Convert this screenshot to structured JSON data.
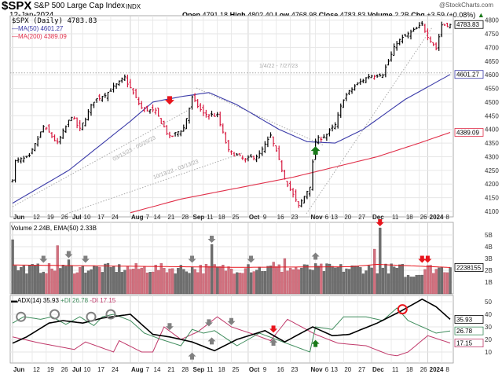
{
  "header": {
    "symbol": "$SPX",
    "name": "S&P 500 Large Cap Index",
    "exchange": "INDX",
    "date": "12-Jan-2024",
    "credit": "@StockCharts.com",
    "open_label": "Open",
    "open": "4791.18",
    "high_label": "High",
    "high": "4802.40",
    "low_label": "Low",
    "low": "4768.98",
    "close_label": "Close",
    "close": "4783.83",
    "volume_label": "Volume",
    "volume": "2.2B",
    "chg_label": "Chg",
    "chg": "+3.59 (+0.08%)"
  },
  "colors": {
    "up": "#000000",
    "down": "#d6193f",
    "ma50": "#3a3aa8",
    "ma200": "#e0304a",
    "plus_di": "#3e8c5c",
    "minus_di": "#c0396a",
    "adx": "#000000",
    "vol_up": "#6e6e6e",
    "vol_down": "#d1707e"
  },
  "chart_data": [
    {
      "type": "ohlc",
      "title": "$SPX (Daily) 4783.83",
      "legend": [
        "$SPX (Daily) 4783.83",
        "MA(50) 4601.27",
        "MA(200) 4389.09"
      ],
      "ylim": [
        4080,
        4820
      ],
      "yticks": [
        4100,
        4150,
        4200,
        4250,
        4300,
        4350,
        4400,
        4450,
        4500,
        4550,
        4600,
        4650,
        4700,
        4750,
        4800
      ],
      "last_labels": {
        "price": "4783.83",
        "ma50": "4601.27",
        "ma200": "4389.09"
      },
      "close_keypoints": [
        [
          0,
          4221
        ],
        [
          1,
          4282
        ],
        [
          6,
          4299
        ],
        [
          11,
          4410
        ],
        [
          13,
          4388
        ],
        [
          16,
          4348
        ],
        [
          21,
          4450
        ],
        [
          24,
          4399
        ],
        [
          29,
          4505
        ],
        [
          34,
          4536
        ],
        [
          40,
          4589
        ],
        [
          44,
          4513
        ],
        [
          46,
          4478
        ],
        [
          51,
          4464
        ],
        [
          56,
          4370
        ],
        [
          61,
          4405
        ],
        [
          64,
          4515
        ],
        [
          68,
          4457
        ],
        [
          73,
          4450
        ],
        [
          77,
          4320
        ],
        [
          83,
          4288
        ],
        [
          88,
          4308
        ],
        [
          92,
          4376
        ],
        [
          97,
          4224
        ],
        [
          102,
          4117
        ],
        [
          106,
          4194
        ],
        [
          108,
          4358
        ],
        [
          112,
          4382
        ],
        [
          115,
          4415
        ],
        [
          118,
          4514
        ],
        [
          122,
          4559
        ],
        [
          127,
          4595
        ],
        [
          132,
          4604
        ],
        [
          137,
          4719
        ],
        [
          142,
          4754
        ],
        [
          146,
          4783
        ],
        [
          148,
          4743
        ],
        [
          151,
          4697
        ],
        [
          153,
          4783
        ],
        [
          156,
          4784
        ]
      ],
      "ma50_keypoints": [
        [
          0,
          4130
        ],
        [
          20,
          4250
        ],
        [
          42,
          4430
        ],
        [
          50,
          4500
        ],
        [
          60,
          4520
        ],
        [
          70,
          4535
        ],
        [
          80,
          4490
        ],
        [
          95,
          4400
        ],
        [
          105,
          4355
        ],
        [
          115,
          4350
        ],
        [
          125,
          4400
        ],
        [
          140,
          4510
        ],
        [
          156,
          4601
        ]
      ],
      "ma200_keypoints": [
        [
          42,
          4095
        ],
        [
          60,
          4145
        ],
        [
          80,
          4185
        ],
        [
          100,
          4225
        ],
        [
          110,
          4250
        ],
        [
          130,
          4300
        ],
        [
          145,
          4350
        ],
        [
          156,
          4389
        ]
      ],
      "trendline_labels": [
        "1/4/22 - 7/27/23",
        "03/13/23 - 05/25/23",
        "10/13/22 - 03/13/23"
      ],
      "signals": [
        [
          56,
          "down",
          "#e8141c"
        ],
        [
          108,
          "up",
          "#1a7a1a"
        ]
      ]
    },
    {
      "type": "bar",
      "title": "Volume 2.24B, EMA(50) 2.33B",
      "ylim": [
        0,
        6
      ],
      "yticks": [
        "1B",
        "2B",
        "3B",
        "4B",
        "5B"
      ],
      "last_label": "2238155",
      "spikes": [
        [
          0,
          4.6
        ],
        [
          16,
          4.1
        ],
        [
          20,
          2.9
        ],
        [
          71,
          4.2
        ],
        [
          131,
          5.6
        ],
        [
          129,
          3.8
        ],
        [
          97,
          3.0
        ],
        [
          93,
          2.7
        ],
        [
          84,
          2.5
        ]
      ],
      "ema_keypoints": [
        [
          0,
          2.45
        ],
        [
          40,
          2.35
        ],
        [
          80,
          2.25
        ],
        [
          120,
          2.3
        ],
        [
          130,
          2.5
        ],
        [
          145,
          2.35
        ],
        [
          156,
          2.24
        ]
      ],
      "arrows": [
        [
          11,
          "down",
          "#808080"
        ],
        [
          20,
          "down",
          "#808080"
        ],
        [
          26,
          "down",
          "#808080"
        ],
        [
          64,
          "down",
          "#808080"
        ],
        [
          71,
          "down",
          "#808080"
        ],
        [
          85,
          "down",
          "#808080"
        ],
        [
          108,
          "up",
          "#808080"
        ],
        [
          131,
          "down",
          "#e8141c"
        ],
        [
          146,
          "down",
          "#e8141c"
        ],
        [
          148,
          "down",
          "#e8141c"
        ]
      ]
    },
    {
      "type": "line",
      "title": "ADX(14) 35.93",
      "legend": [
        "ADX(14) 35.93",
        "+DI 26.78",
        "-DI 17.15"
      ],
      "ylim": [
        0,
        55
      ],
      "yticks": [
        10,
        20,
        30,
        40,
        50
      ],
      "last_labels": {
        "adx": "35.93",
        "plus_di": "26.78",
        "minus_di": "17.15"
      },
      "adx": [
        [
          0,
          17
        ],
        [
          5,
          22
        ],
        [
          13,
          33
        ],
        [
          18,
          35
        ],
        [
          25,
          33
        ],
        [
          32,
          37
        ],
        [
          42,
          40
        ],
        [
          50,
          24
        ],
        [
          56,
          22
        ],
        [
          64,
          18
        ],
        [
          72,
          11
        ],
        [
          80,
          20
        ],
        [
          90,
          27
        ],
        [
          97,
          18
        ],
        [
          107,
          30
        ],
        [
          114,
          23
        ],
        [
          120,
          24
        ],
        [
          130,
          33
        ],
        [
          138,
          42
        ],
        [
          146,
          52
        ],
        [
          151,
          46
        ],
        [
          156,
          36
        ]
      ],
      "plus_di": [
        [
          0,
          33
        ],
        [
          4,
          38
        ],
        [
          10,
          36
        ],
        [
          14,
          38
        ],
        [
          19,
          32
        ],
        [
          24,
          38
        ],
        [
          29,
          31
        ],
        [
          32,
          38
        ],
        [
          36,
          40
        ],
        [
          42,
          35
        ],
        [
          47,
          25
        ],
        [
          53,
          20
        ],
        [
          60,
          15
        ],
        [
          64,
          28
        ],
        [
          68,
          25
        ],
        [
          72,
          27
        ],
        [
          80,
          15
        ],
        [
          88,
          25
        ],
        [
          94,
          20
        ],
        [
          106,
          10
        ],
        [
          108,
          30
        ],
        [
          114,
          28
        ],
        [
          118,
          38
        ],
        [
          126,
          38
        ],
        [
          132,
          35
        ],
        [
          137,
          45
        ],
        [
          141,
          35
        ],
        [
          151,
          25
        ],
        [
          156,
          26.78
        ]
      ],
      "minus_di": [
        [
          0,
          22
        ],
        [
          10,
          17
        ],
        [
          22,
          12
        ],
        [
          26,
          18
        ],
        [
          36,
          10
        ],
        [
          38,
          19
        ],
        [
          46,
          10
        ],
        [
          50,
          10
        ],
        [
          54,
          30
        ],
        [
          60,
          20
        ],
        [
          66,
          26
        ],
        [
          73,
          38
        ],
        [
          78,
          30
        ],
        [
          86,
          24
        ],
        [
          92,
          19
        ],
        [
          98,
          36
        ],
        [
          108,
          24
        ],
        [
          116,
          17
        ],
        [
          126,
          15
        ],
        [
          134,
          8
        ],
        [
          137,
          7
        ],
        [
          141,
          10
        ],
        [
          148,
          23
        ],
        [
          156,
          17.15
        ]
      ],
      "circles": [
        [
          3,
          38,
          "#808080"
        ],
        [
          15,
          40,
          "#808080"
        ],
        [
          28,
          38,
          "#808080"
        ],
        [
          35,
          40,
          "#808080"
        ],
        [
          139,
          44,
          "#e8141c"
        ]
      ],
      "arrows": [
        [
          56,
          28,
          "down",
          "#808080"
        ],
        [
          64,
          9,
          "up",
          "#808080"
        ],
        [
          70,
          31,
          "down",
          "#808080"
        ],
        [
          71,
          21,
          "up",
          "#808080"
        ],
        [
          78,
          32,
          "down",
          "#808080"
        ],
        [
          93,
          26,
          "down",
          "#e8141c"
        ],
        [
          93,
          20,
          "up",
          "#808080"
        ],
        [
          108,
          19,
          "up",
          "#1a7a1a"
        ]
      ]
    }
  ],
  "xaxis": [
    "Jun",
    "12",
    "19",
    "26",
    "Jul",
    "10",
    "17",
    "24",
    "Aug",
    "7",
    "14",
    "21",
    "28",
    "Sep",
    "11",
    "18",
    "25",
    "Oct",
    "9",
    "16",
    "23",
    "Nov",
    "6",
    "13",
    "20",
    "27",
    "Dec",
    "11",
    "18",
    "26",
    "2024",
    "8"
  ],
  "xaxis_idx": [
    0,
    7,
    12,
    17,
    21,
    25,
    30,
    35,
    42,
    45,
    50,
    55,
    60,
    64,
    68,
    73,
    78,
    84,
    89,
    94,
    99,
    106,
    108,
    113,
    118,
    123,
    128,
    135,
    140,
    145,
    148,
    153
  ]
}
